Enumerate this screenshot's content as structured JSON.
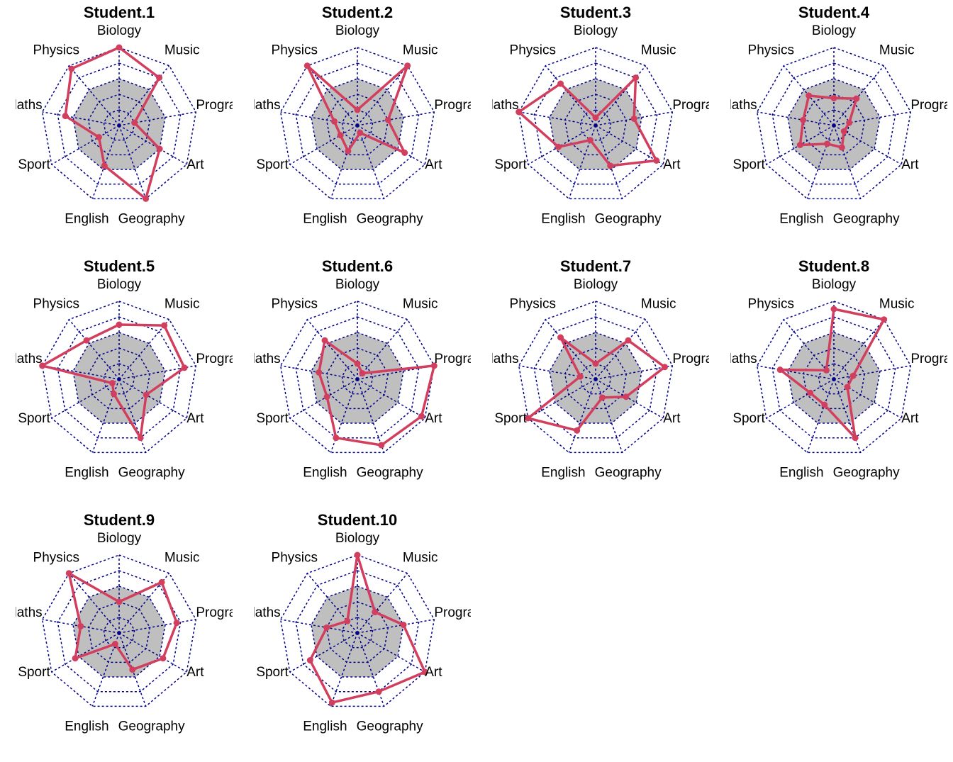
{
  "chart_data": {
    "type": "radar",
    "axes": [
      "Biology",
      "Music",
      "Programming",
      "Art",
      "Geography",
      "English",
      "Sport",
      "Maths",
      "Physics"
    ],
    "axis_display_labels": [
      "Biology",
      "Music",
      "Program",
      "Art",
      "Geography",
      "English",
      "Sport",
      "laths",
      "Physics"
    ],
    "rlim": [
      0,
      20
    ],
    "grid_levels": 5,
    "reference_area": [
      12,
      12,
      12,
      12,
      12,
      12,
      12,
      12,
      12
    ],
    "colors": {
      "grid": "#00008b",
      "series_line": "#d23f5e",
      "reference_fill": "#bfbfbf"
    },
    "panels": [
      {
        "title": "Student.1",
        "values": [
          20,
          16,
          4,
          12,
          20,
          11,
          6,
          14,
          19
        ]
      },
      {
        "title": "Student.2",
        "values": [
          4,
          20,
          8,
          14,
          2,
          7,
          5,
          6,
          20
        ]
      },
      {
        "title": "Student.3",
        "values": [
          2,
          16,
          10,
          18,
          11,
          4,
          11,
          20,
          14
        ]
      },
      {
        "title": "Student.4",
        "values": [
          7,
          9,
          4,
          3,
          6,
          5,
          10,
          8,
          10
        ]
      },
      {
        "title": "Student.5",
        "values": [
          14,
          18,
          17,
          8,
          16,
          4,
          2,
          20,
          13
        ]
      },
      {
        "title": "Student.6",
        "values": [
          4,
          2,
          20,
          19,
          18,
          16,
          9,
          10,
          13
        ]
      },
      {
        "title": "Student.7",
        "values": [
          4,
          13,
          18,
          9,
          5,
          14,
          20,
          4,
          14
        ]
      },
      {
        "title": "Student.8",
        "values": [
          18,
          20,
          5,
          4,
          16,
          7,
          7,
          14,
          3
        ]
      },
      {
        "title": "Student.9",
        "values": [
          8,
          17,
          15,
          13,
          10,
          3,
          13,
          10,
          20
        ]
      },
      {
        "title": "Student.10",
        "values": [
          20,
          7,
          12,
          20,
          16,
          19,
          14,
          8,
          4
        ]
      }
    ]
  }
}
